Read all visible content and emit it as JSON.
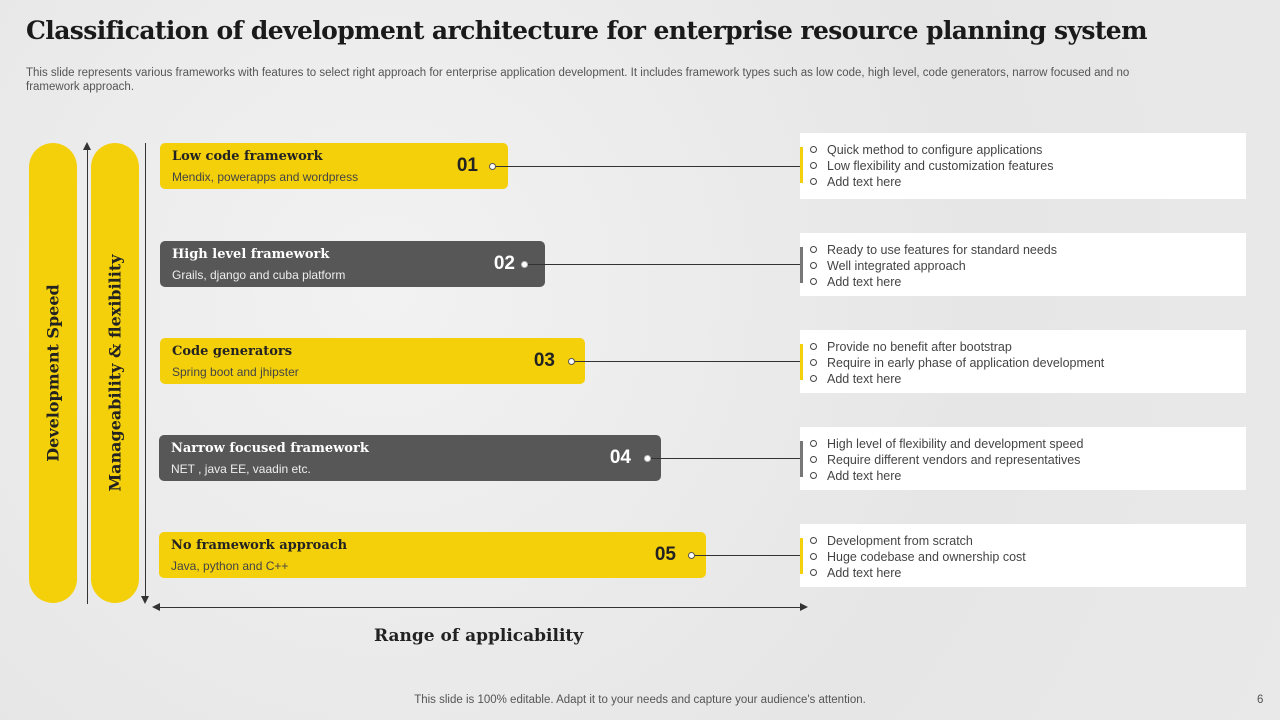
{
  "title": "Classification of development architecture for enterprise resource planning system",
  "subtitle": "This slide represents various frameworks with features to select right approach for enterprise application development. It includes framework types such as low code, high level, code generators, narrow focused and no framework approach.",
  "axes": {
    "development_speed": "Development Speed",
    "manageability": "Manageability & flexibility",
    "range": "Range of applicability"
  },
  "frameworks": [
    {
      "name": "Low code framework",
      "examples": "Mendix, powerapps  and wordpress",
      "number": "01",
      "features": [
        "Quick method to configure applications",
        "Low flexibility and customization features",
        "Add text here"
      ]
    },
    {
      "name": "High level framework",
      "examples": "Grails, django and cuba platform",
      "number": "02",
      "features": [
        "Ready to use features for standard needs",
        "Well integrated approach",
        "Add text here"
      ]
    },
    {
      "name": "Code generators",
      "examples": "Spring boot and jhipster",
      "number": "03",
      "features": [
        "Provide  no benefit after bootstrap",
        "Require  in early phase of application development",
        "Add text here"
      ]
    },
    {
      "name": "Narrow focused framework",
      "examples": "NET , java EE, vaadin etc.",
      "number": "04",
      "features": [
        "High level of flexibility and development  speed",
        "Require  different  vendors and representatives",
        "Add text here"
      ]
    },
    {
      "name": "No framework approach",
      "examples": "Java,  python and C++",
      "number": "05",
      "features": [
        "Development  from scratch",
        "Huge codebase and ownership cost",
        "Add text here"
      ]
    }
  ],
  "footer": "This slide is 100% editable. Adapt it to your needs and capture your audience's attention.",
  "page_number": "6",
  "colors": {
    "accent": "#f4d00b",
    "dark": "#575757"
  }
}
